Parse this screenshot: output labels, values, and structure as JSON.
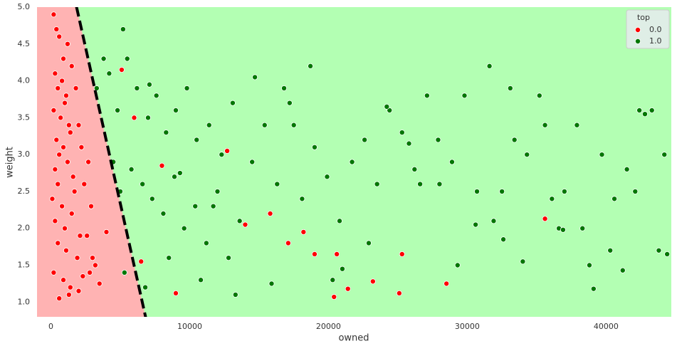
{
  "chart_data": {
    "type": "scatter",
    "xlabel": "owned",
    "ylabel": "weight",
    "xlim": [
      -1000,
      44700
    ],
    "ylim": [
      0.8,
      5.0
    ],
    "xticks": [
      0,
      10000,
      20000,
      30000,
      40000
    ],
    "yticks": [
      {
        "value": 1,
        "label": "1.0"
      },
      1.5,
      {
        "value": 2,
        "label": "2.0"
      },
      2.5,
      {
        "value": 3,
        "label": "3.0"
      },
      3.5,
      {
        "value": 4,
        "label": "4.0"
      },
      4.5,
      {
        "value": 5,
        "label": "5.0"
      }
    ],
    "grid": false,
    "legend": {
      "title": "top",
      "position": "upper right"
    },
    "regions": {
      "left_color": "#ffb3b3",
      "right_color": "#b3ffb3"
    },
    "boundary": {
      "x": [
        1850,
        6820
      ],
      "y": [
        5.0,
        0.8
      ],
      "color": "#000000"
    },
    "series": [
      {
        "name": "0.0",
        "color": "#ff0000",
        "x": [
          200,
          400,
          600,
          900,
          1200,
          300,
          500,
          800,
          1100,
          1500,
          200,
          700,
          1000,
          1300,
          1800,
          400,
          600,
          900,
          1400,
          2000,
          300,
          500,
          1200,
          1600,
          2200,
          100,
          800,
          1700,
          2400,
          2700,
          300,
          1000,
          1500,
          2100,
          2900,
          500,
          1100,
          1900,
          2600,
          3200,
          200,
          900,
          1400,
          2300,
          3500,
          600,
          1300,
          2000,
          2800,
          3000,
          3800,
          5100,
          6000,
          4000,
          6500,
          8000,
          9000,
          12700,
          14000,
          15800,
          17100,
          18200,
          19000,
          20400,
          20600,
          21400,
          23200,
          25100,
          25300,
          28500,
          35600
        ],
        "y": [
          4.9,
          4.7,
          4.6,
          4.3,
          4.5,
          4.1,
          3.9,
          4.0,
          3.8,
          4.2,
          3.6,
          3.5,
          3.7,
          3.4,
          3.9,
          3.2,
          3.0,
          3.1,
          3.3,
          3.4,
          2.8,
          2.6,
          2.9,
          2.7,
          3.1,
          2.4,
          2.3,
          2.5,
          2.6,
          2.9,
          2.1,
          2.0,
          2.2,
          1.9,
          2.3,
          1.8,
          1.7,
          1.6,
          1.9,
          1.5,
          1.4,
          1.3,
          1.2,
          1.35,
          1.25,
          1.05,
          1.1,
          1.15,
          1.4,
          1.6,
          4.3,
          4.15,
          3.5,
          1.95,
          1.55,
          2.85,
          1.12,
          3.05,
          2.05,
          2.2,
          1.8,
          1.95,
          1.65,
          1.07,
          1.65,
          1.18,
          1.28,
          1.12,
          1.65,
          1.25,
          2.13
        ]
      },
      {
        "name": "1.0",
        "color": "#007700",
        "x": [
          3300,
          3800,
          4200,
          4800,
          5200,
          5500,
          6200,
          7000,
          7600,
          8300,
          9000,
          9800,
          10500,
          11400,
          12300,
          13100,
          4500,
          5000,
          5800,
          6600,
          7300,
          8100,
          8900,
          9600,
          10400,
          11200,
          12000,
          12800,
          13600,
          14500,
          15400,
          16300,
          17200,
          18100,
          19000,
          19900,
          20800,
          21700,
          22600,
          23500,
          24400,
          25300,
          26200,
          27100,
          28000,
          28900,
          29800,
          30700,
          31600,
          32500,
          33400,
          34300,
          35200,
          36100,
          37000,
          37900,
          38800,
          39700,
          40600,
          41500,
          42400,
          43300,
          44200,
          5300,
          6800,
          8500,
          10800,
          13300,
          15900,
          16800,
          18700,
          21000,
          24200,
          26600,
          29300,
          31900,
          33100,
          35600,
          36600,
          38300,
          40300,
          42100,
          44400,
          7100,
          9300,
          11700,
          14700,
          17500,
          20300,
          22900,
          25800,
          27900,
          30600,
          32600,
          34000,
          36900,
          39100,
          41200,
          42800,
          43800
        ],
        "y": [
          3.9,
          4.3,
          4.1,
          3.6,
          4.7,
          4.3,
          3.9,
          3.5,
          3.8,
          3.3,
          3.6,
          3.9,
          3.2,
          3.4,
          3.0,
          3.7,
          2.9,
          2.5,
          2.8,
          2.6,
          2.4,
          2.2,
          2.7,
          2.0,
          2.3,
          1.8,
          2.5,
          1.6,
          2.1,
          2.9,
          3.4,
          2.6,
          3.7,
          2.4,
          3.1,
          2.7,
          2.1,
          2.9,
          3.2,
          2.6,
          3.6,
          3.3,
          2.8,
          3.8,
          2.6,
          2.9,
          3.8,
          2.5,
          4.2,
          2.5,
          3.2,
          3.0,
          3.8,
          2.4,
          2.5,
          3.4,
          1.5,
          3.0,
          2.4,
          2.8,
          3.6,
          3.6,
          3.0,
          1.4,
          1.2,
          1.6,
          1.3,
          1.1,
          1.25,
          3.9,
          4.2,
          1.45,
          3.65,
          2.6,
          1.5,
          2.1,
          3.9,
          3.4,
          2.0,
          2.0,
          1.7,
          2.5,
          1.65,
          3.95,
          2.75,
          2.3,
          4.05,
          3.4,
          1.3,
          1.8,
          3.15,
          3.2,
          2.05,
          1.85,
          1.55,
          1.98,
          1.18,
          1.43,
          3.55,
          1.7
        ]
      }
    ]
  }
}
